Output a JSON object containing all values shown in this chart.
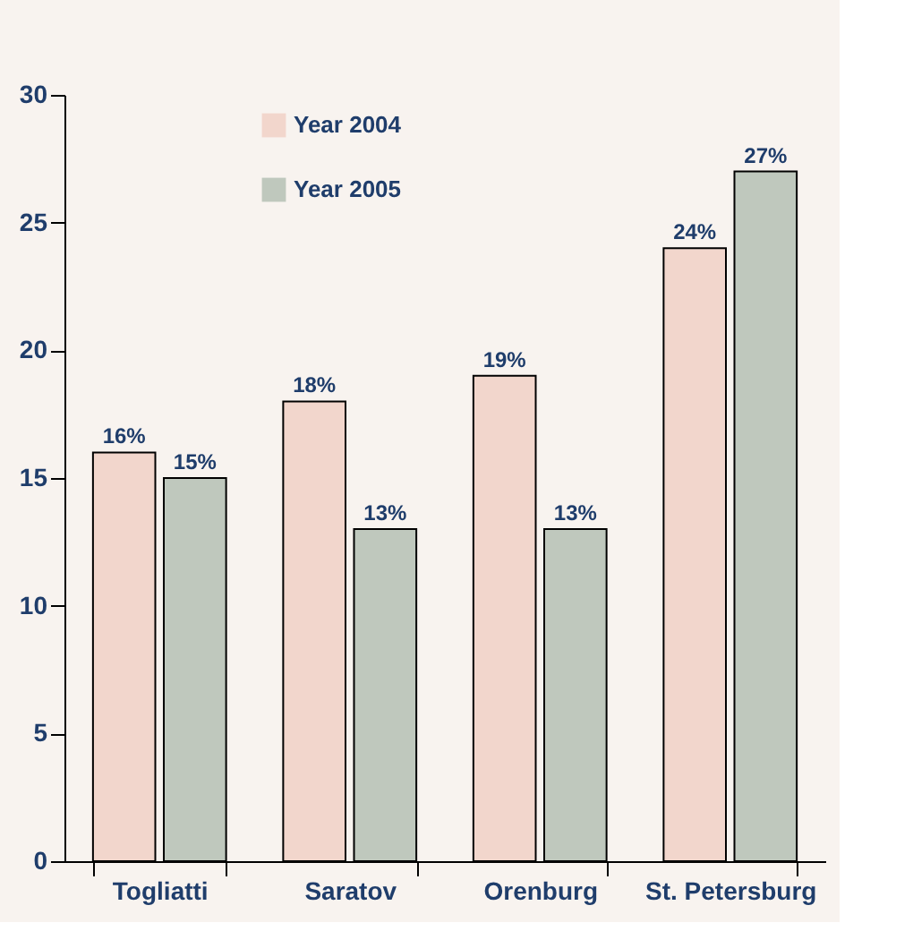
{
  "chart_data": {
    "type": "bar",
    "categories": [
      "Togliatti",
      "Saratov",
      "Orenburg",
      "St. Petersburg"
    ],
    "series": [
      {
        "name": "Year 2004",
        "color": "#f2d6cc",
        "values": [
          16,
          18,
          19,
          24
        ],
        "value_labels": [
          "16%",
          "18%",
          "19%",
          "24%"
        ]
      },
      {
        "name": "Year 2005",
        "color": "#bfc8bd",
        "values": [
          15,
          13,
          13,
          27
        ],
        "value_labels": [
          "15%",
          "13%",
          "13%",
          "27%"
        ]
      }
    ],
    "ylim": [
      0,
      30
    ],
    "yticks": [
      0,
      5,
      10,
      15,
      20,
      25,
      30
    ],
    "grid": false,
    "legend": "top left"
  }
}
